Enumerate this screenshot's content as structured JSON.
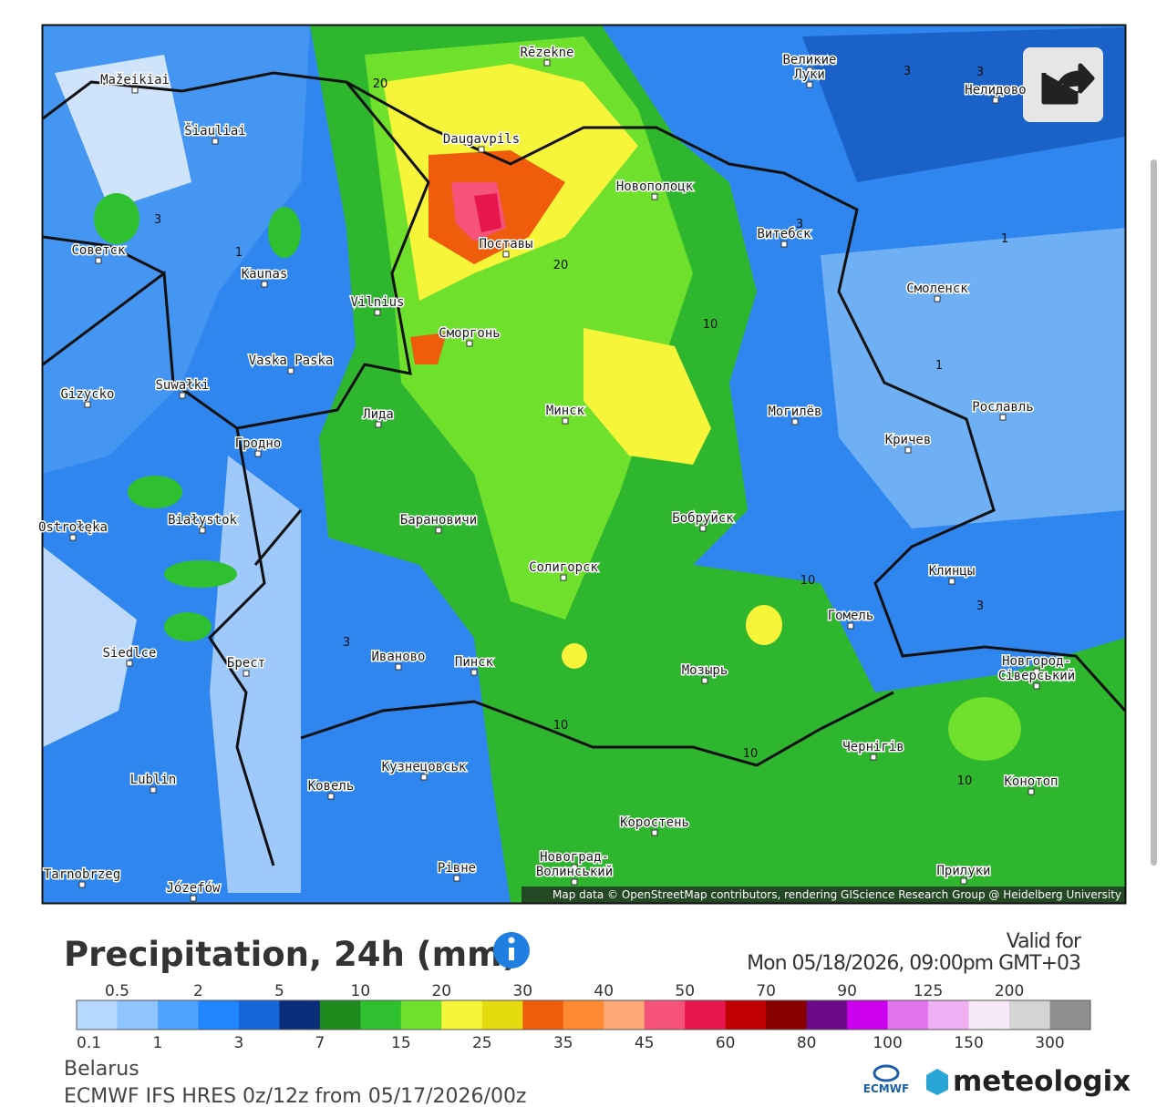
{
  "map": {
    "attribution": "Map data © OpenStreetMap contributors, rendering GIScience Research Group @ Heidelberg University",
    "places": [
      "Rēzekne",
      "Великие",
      "Луки",
      "Mažeikiai",
      "Šiauliai",
      "Daugavpils",
      "Новополоцк",
      "Нелидово",
      "Советск",
      "Kaunas",
      "Поставы",
      "Витебск",
      "Смоленск",
      "Vilnius",
      "Сморгонь",
      "Vaska Paska",
      "Gizycko",
      "Suwałki",
      "Лида",
      "Минск",
      "Могилёв",
      "Рославль",
      "Гродно",
      "Кричев",
      "Białystok",
      "Ostrołęka",
      "Барановичи",
      "Бобруйск",
      "Солигорск",
      "Клинцы",
      "Гомель",
      "Siedlce",
      "Брест",
      "Иваново",
      "Пинск",
      "Мозырь",
      "Новгород-",
      "Сіверський",
      "Чернігів",
      "Кузнецовськ",
      "Конотоп",
      "Lublin",
      "Ковель",
      "Коростень",
      "Новоград-",
      "Волинський",
      "Рівне",
      "Прилуки",
      "Tarnobrzeg",
      "Józefów"
    ],
    "contour_labels": [
      20,
      20,
      10,
      10,
      10,
      10,
      10,
      3,
      3,
      3,
      3,
      1,
      1,
      1,
      3,
      3
    ]
  },
  "legend": {
    "title": "Precipitation, 24h (mm)",
    "valid_label": "Valid for",
    "valid_time": "Mon 05/18/2026, 09:00pm GMT+03",
    "levels": [
      0.1,
      0.5,
      1,
      2,
      3,
      5,
      7,
      10,
      15,
      20,
      25,
      30,
      35,
      40,
      45,
      50,
      60,
      70,
      80,
      90,
      100,
      125,
      150,
      200,
      300
    ],
    "colors": [
      "#b7d9ff",
      "#8ec5ff",
      "#4fa3ff",
      "#1f86ff",
      "#1467d9",
      "#0b2e7c",
      "#1e8a1e",
      "#2fc02f",
      "#6fe02c",
      "#f7f53a",
      "#e5dc10",
      "#ee5c0c",
      "#ff8a33",
      "#ffa878",
      "#f5537a",
      "#e8164e",
      "#c00000",
      "#880000",
      "#6d0a8a",
      "#cc00ee",
      "#e374f0",
      "#eeb0f3",
      "#f7e8f8",
      "#d4d4d4",
      "#8f8f8f"
    ]
  },
  "footer": {
    "region": "Belarus",
    "model": "ECMWF IFS HRES 0z/12z from 05/17/2026/00z",
    "ecmwf": "ECMWF",
    "brand": "meteologix"
  }
}
